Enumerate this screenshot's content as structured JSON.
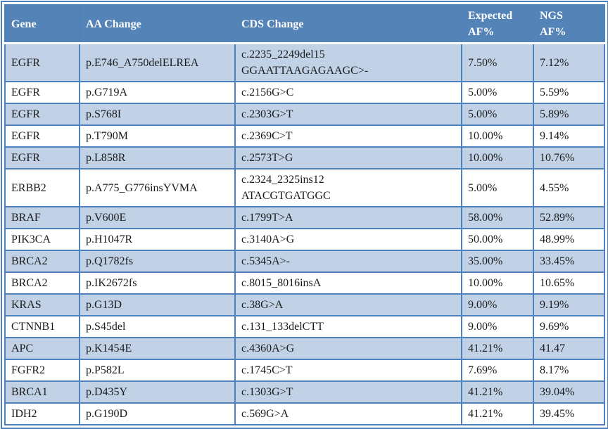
{
  "colors": {
    "border": "#4f81bd",
    "header_bg": "#5483b7",
    "header_text": "#ffffff",
    "row_shade": "#c1d2e7",
    "body_text": "#1b1b1b"
  },
  "table": {
    "columns": [
      {
        "key": "gene",
        "label": "Gene"
      },
      {
        "key": "aa",
        "label": "AA Change"
      },
      {
        "key": "cds",
        "label": "CDS Change"
      },
      {
        "key": "expected",
        "label": "Expected\nAF%"
      },
      {
        "key": "ngs",
        "label": "NGS\nAF%"
      }
    ],
    "rows": [
      {
        "gene": "EGFR",
        "aa": "p.E746_A750delELREA",
        "cds": "c.2235_2249del15\nGGAATTAAGAGAAGC>-",
        "expected": "7.50%",
        "ngs": "7.12%"
      },
      {
        "gene": "EGFR",
        "aa": "p.G719A",
        "cds": "c.2156G>C",
        "expected": "5.00%",
        "ngs": "5.59%"
      },
      {
        "gene": "EGFR",
        "aa": "p.S768I",
        "cds": "c.2303G>T",
        "expected": "5.00%",
        "ngs": "5.89%"
      },
      {
        "gene": "EGFR",
        "aa": "p.T790M",
        "cds": "c.2369C>T",
        "expected": "10.00%",
        "ngs": "9.14%"
      },
      {
        "gene": "EGFR",
        "aa": "p.L858R",
        "cds": "c.2573T>G",
        "expected": "10.00%",
        "ngs": "10.76%"
      },
      {
        "gene": "ERBB2",
        "aa": "p.A775_G776insYVMA",
        "cds": "c.2324_2325ins12\nATACGTGATGGC",
        "expected": "5.00%",
        "ngs": "4.55%"
      },
      {
        "gene": "BRAF",
        "aa": "p.V600E",
        "cds": "c.1799T>A",
        "expected": "58.00%",
        "ngs": "52.89%"
      },
      {
        "gene": "PIK3CA",
        "aa": "p.H1047R",
        "cds": "c.3140A>G",
        "expected": "50.00%",
        "ngs": "48.99%"
      },
      {
        "gene": "BRCA2",
        "aa": "p.Q1782fs",
        "cds": "c.5345A>-",
        "expected": "35.00%",
        "ngs": "33.45%"
      },
      {
        "gene": "BRCA2",
        "aa": "p.IK2672fs",
        "cds": "c.8015_8016insA",
        "expected": "10.00%",
        "ngs": "10.65%"
      },
      {
        "gene": "KRAS",
        "aa": "p.G13D",
        "cds": "c.38G>A",
        "expected": "9.00%",
        "ngs": "9.19%"
      },
      {
        "gene": "CTNNB1",
        "aa": "p.S45del",
        "cds": "c.131_133delCTT",
        "expected": "9.00%",
        "ngs": "9.69%"
      },
      {
        "gene": "APC",
        "aa": "p.K1454E",
        "cds": "c.4360A>G",
        "expected": "41.21%",
        "ngs": "41.47"
      },
      {
        "gene": "FGFR2",
        "aa": "p.P582L",
        "cds": "c.1745C>T",
        "expected": "7.69%",
        "ngs": "8.17%"
      },
      {
        "gene": "BRCA1",
        "aa": "p.D435Y",
        "cds": "c.1303G>T",
        "expected": "41.21%",
        "ngs": "39.04%"
      },
      {
        "gene": "IDH2",
        "aa": "p.G190D",
        "cds": "c.569G>A",
        "expected": "41.21%",
        "ngs": "39.45%"
      }
    ]
  }
}
